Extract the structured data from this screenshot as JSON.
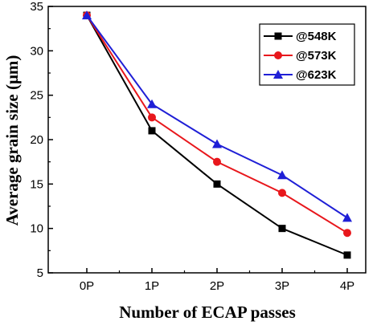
{
  "chart_data": {
    "type": "line",
    "title": "",
    "xlabel": "Number of ECAP passes",
    "ylabel": "Average grain size (μm)",
    "categories": [
      "0P",
      "1P",
      "2P",
      "3P",
      "4P"
    ],
    "ylim": [
      5,
      35
    ],
    "yticks": [
      "5",
      "10",
      "15",
      "20",
      "25",
      "30",
      "35"
    ],
    "grid": false,
    "legend_position": "top-right",
    "series": [
      {
        "name": "@548K",
        "values": [
          34,
          21,
          15,
          10,
          7
        ],
        "color": "#000000",
        "marker": "square"
      },
      {
        "name": "@573K",
        "values": [
          34,
          22.5,
          17.5,
          14,
          9.5
        ],
        "color": "#e8171c",
        "marker": "circle"
      },
      {
        "name": "@623K",
        "values": [
          34,
          24,
          19.5,
          16,
          11.2
        ],
        "color": "#1f1fd6",
        "marker": "triangle"
      }
    ]
  }
}
